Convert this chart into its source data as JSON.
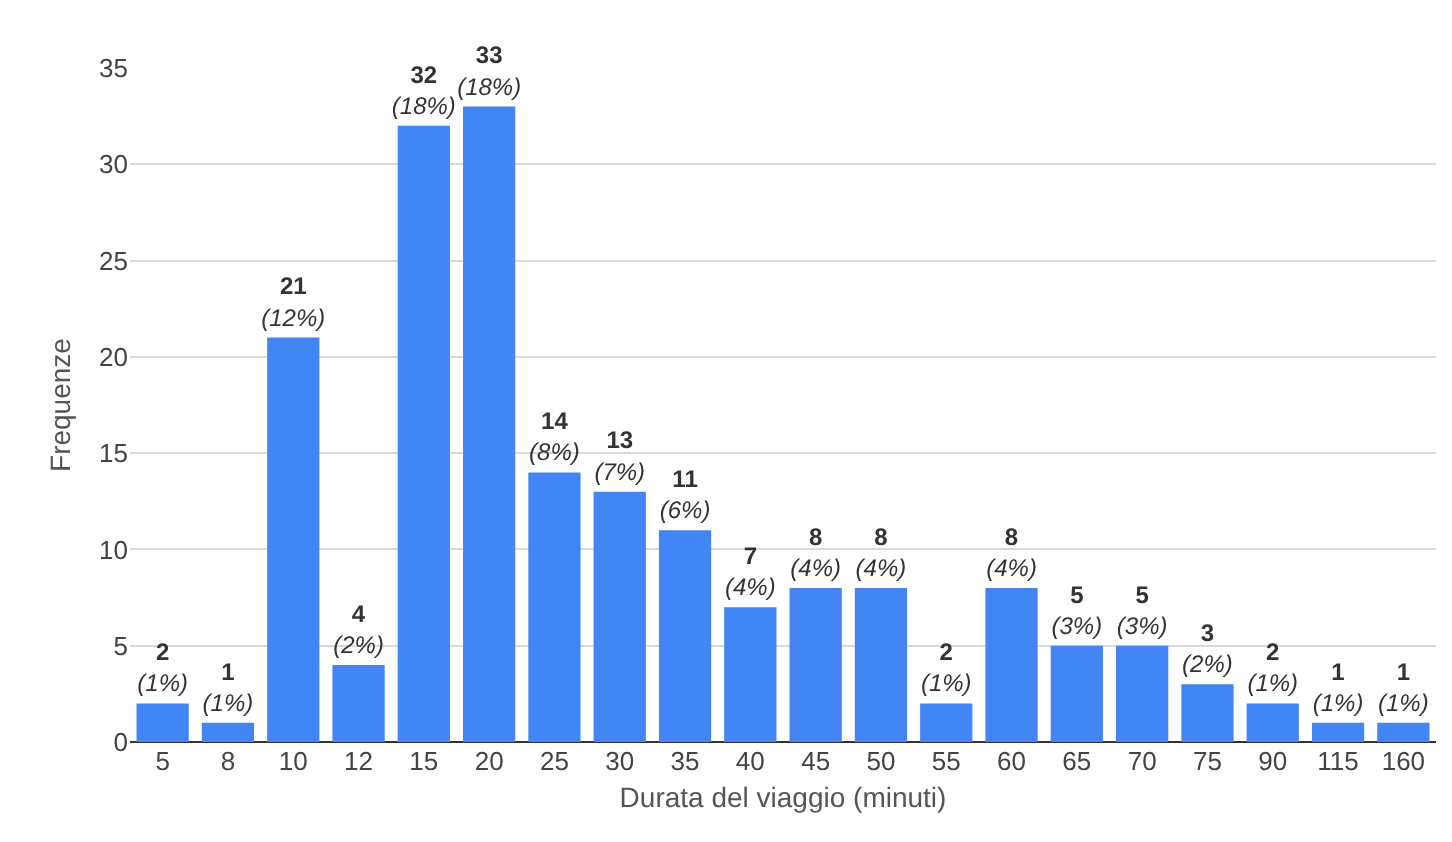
{
  "chart_data": {
    "type": "bar",
    "xlabel": "Durata del viaggio (minuti)",
    "ylabel": "Frequenze",
    "categories": [
      "5",
      "8",
      "10",
      "12",
      "15",
      "20",
      "25",
      "30",
      "35",
      "40",
      "45",
      "50",
      "55",
      "60",
      "65",
      "70",
      "75",
      "90",
      "115",
      "160"
    ],
    "values": [
      2,
      1,
      21,
      4,
      32,
      33,
      14,
      13,
      11,
      7,
      8,
      8,
      2,
      8,
      5,
      5,
      3,
      2,
      1,
      1
    ],
    "value_labels": [
      "2\n(1%)",
      "1\n(1%)",
      "21\n(12%)",
      "4\n(2%)",
      "32\n(18%)",
      "33\n(18%)",
      "14\n(8%)",
      "13\n(7%)",
      "11\n(6%)",
      "7\n(4%)",
      "8\n(4%)",
      "8\n(4%)",
      "2\n(1%)",
      "8\n(4%)",
      "5\n(3%)",
      "5\n(3%)",
      "3\n(2%)",
      "2\n(1%)",
      "1\n(1%)",
      "1\n(1%)"
    ],
    "color": "#4285f4",
    "ylim": [
      0,
      35
    ],
    "yticks": [
      0,
      5,
      10,
      15,
      20,
      25,
      30,
      35
    ],
    "grid": "y"
  }
}
